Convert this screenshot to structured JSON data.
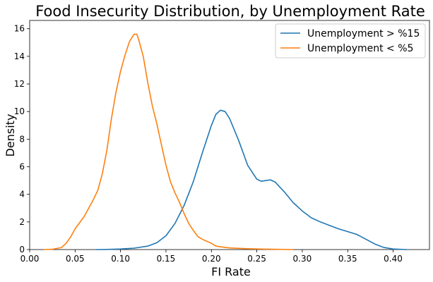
{
  "chart_data": {
    "type": "line",
    "title": "Food Insecurity Distribution, by Unemployment Rate",
    "xlabel": "FI Rate",
    "ylabel": "Density",
    "xlim": [
      0.0,
      0.44
    ],
    "ylim": [
      0,
      16.6
    ],
    "xticks": [
      "0.00",
      "0.05",
      "0.10",
      "0.15",
      "0.20",
      "0.25",
      "0.30",
      "0.35",
      "0.40"
    ],
    "yticks": [
      "0",
      "2",
      "4",
      "6",
      "8",
      "10",
      "12",
      "14",
      "16"
    ],
    "grid": false,
    "legend_position": "top-right",
    "series": [
      {
        "name": "Unemployment > %15",
        "color": "#1f77b4",
        "points": [
          [
            0.073,
            0.0
          ],
          [
            0.085,
            0.01
          ],
          [
            0.1,
            0.04
          ],
          [
            0.115,
            0.1
          ],
          [
            0.13,
            0.25
          ],
          [
            0.14,
            0.5
          ],
          [
            0.15,
            1.0
          ],
          [
            0.16,
            1.9
          ],
          [
            0.17,
            3.2
          ],
          [
            0.18,
            4.9
          ],
          [
            0.19,
            7.0
          ],
          [
            0.2,
            9.0
          ],
          [
            0.205,
            9.8
          ],
          [
            0.21,
            10.1
          ],
          [
            0.215,
            10.0
          ],
          [
            0.22,
            9.5
          ],
          [
            0.23,
            7.9
          ],
          [
            0.24,
            6.1
          ],
          [
            0.25,
            5.1
          ],
          [
            0.255,
            4.95
          ],
          [
            0.26,
            5.0
          ],
          [
            0.265,
            5.05
          ],
          [
            0.27,
            4.9
          ],
          [
            0.28,
            4.2
          ],
          [
            0.29,
            3.4
          ],
          [
            0.3,
            2.8
          ],
          [
            0.31,
            2.3
          ],
          [
            0.32,
            2.0
          ],
          [
            0.33,
            1.75
          ],
          [
            0.34,
            1.5
          ],
          [
            0.35,
            1.3
          ],
          [
            0.36,
            1.1
          ],
          [
            0.37,
            0.75
          ],
          [
            0.38,
            0.4
          ],
          [
            0.39,
            0.15
          ],
          [
            0.4,
            0.04
          ],
          [
            0.415,
            0.0
          ]
        ]
      },
      {
        "name": "Unemployment < %5",
        "color": "#ff7f0e",
        "points": [
          [
            0.015,
            0.0
          ],
          [
            0.025,
            0.02
          ],
          [
            0.035,
            0.15
          ],
          [
            0.04,
            0.45
          ],
          [
            0.045,
            0.9
          ],
          [
            0.05,
            1.5
          ],
          [
            0.06,
            2.4
          ],
          [
            0.07,
            3.6
          ],
          [
            0.075,
            4.3
          ],
          [
            0.08,
            5.5
          ],
          [
            0.085,
            7.2
          ],
          [
            0.09,
            9.5
          ],
          [
            0.095,
            11.4
          ],
          [
            0.1,
            12.9
          ],
          [
            0.105,
            14.1
          ],
          [
            0.11,
            15.1
          ],
          [
            0.115,
            15.6
          ],
          [
            0.118,
            15.6
          ],
          [
            0.12,
            15.2
          ],
          [
            0.125,
            14.0
          ],
          [
            0.13,
            12.1
          ],
          [
            0.135,
            10.4
          ],
          [
            0.14,
            9.1
          ],
          [
            0.145,
            7.6
          ],
          [
            0.15,
            6.1
          ],
          [
            0.155,
            4.9
          ],
          [
            0.16,
            4.1
          ],
          [
            0.165,
            3.4
          ],
          [
            0.17,
            2.6
          ],
          [
            0.175,
            1.9
          ],
          [
            0.18,
            1.4
          ],
          [
            0.185,
            0.95
          ],
          [
            0.19,
            0.75
          ],
          [
            0.195,
            0.6
          ],
          [
            0.2,
            0.45
          ],
          [
            0.205,
            0.25
          ],
          [
            0.21,
            0.2
          ],
          [
            0.22,
            0.12
          ],
          [
            0.24,
            0.06
          ],
          [
            0.26,
            0.03
          ],
          [
            0.29,
            0.0
          ]
        ]
      }
    ]
  }
}
